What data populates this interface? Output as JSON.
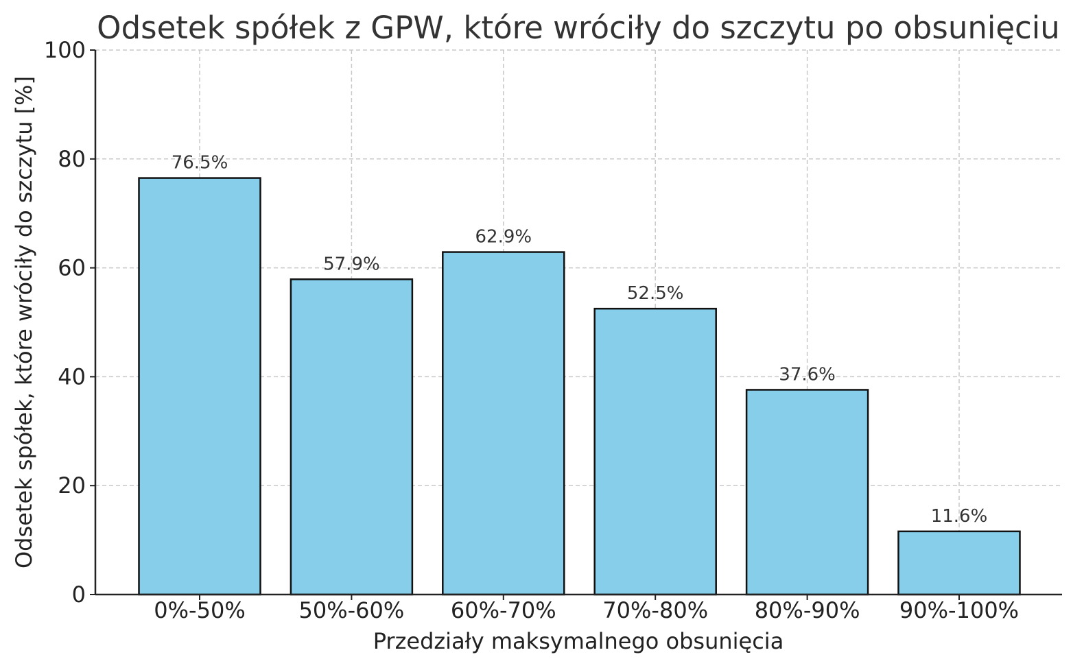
{
  "chart_data": {
    "type": "bar",
    "title": "Odsetek spółek z GPW, które wróciły do szczytu po obsunięciu",
    "xlabel": "Przedziały maksymalnego obsunięcia",
    "ylabel": "Odsetek spółek, które wróciły do szczytu [%]",
    "categories": [
      "0%-50%",
      "50%-60%",
      "60%-70%",
      "70%-80%",
      "80%-90%",
      "90%-100%"
    ],
    "values": [
      76.5,
      57.9,
      62.9,
      52.5,
      37.6,
      11.6
    ],
    "data_labels": [
      "76.5%",
      "57.9%",
      "62.9%",
      "52.5%",
      "37.6%",
      "11.6%"
    ],
    "ylim": [
      0,
      100
    ],
    "yticks": [
      0,
      20,
      40,
      60,
      80,
      100
    ],
    "ytick_labels": [
      "0",
      "20",
      "40",
      "60",
      "80",
      "100"
    ],
    "grid": true,
    "bar_color": "#87CEEB",
    "bar_edge_color": "#111111"
  }
}
